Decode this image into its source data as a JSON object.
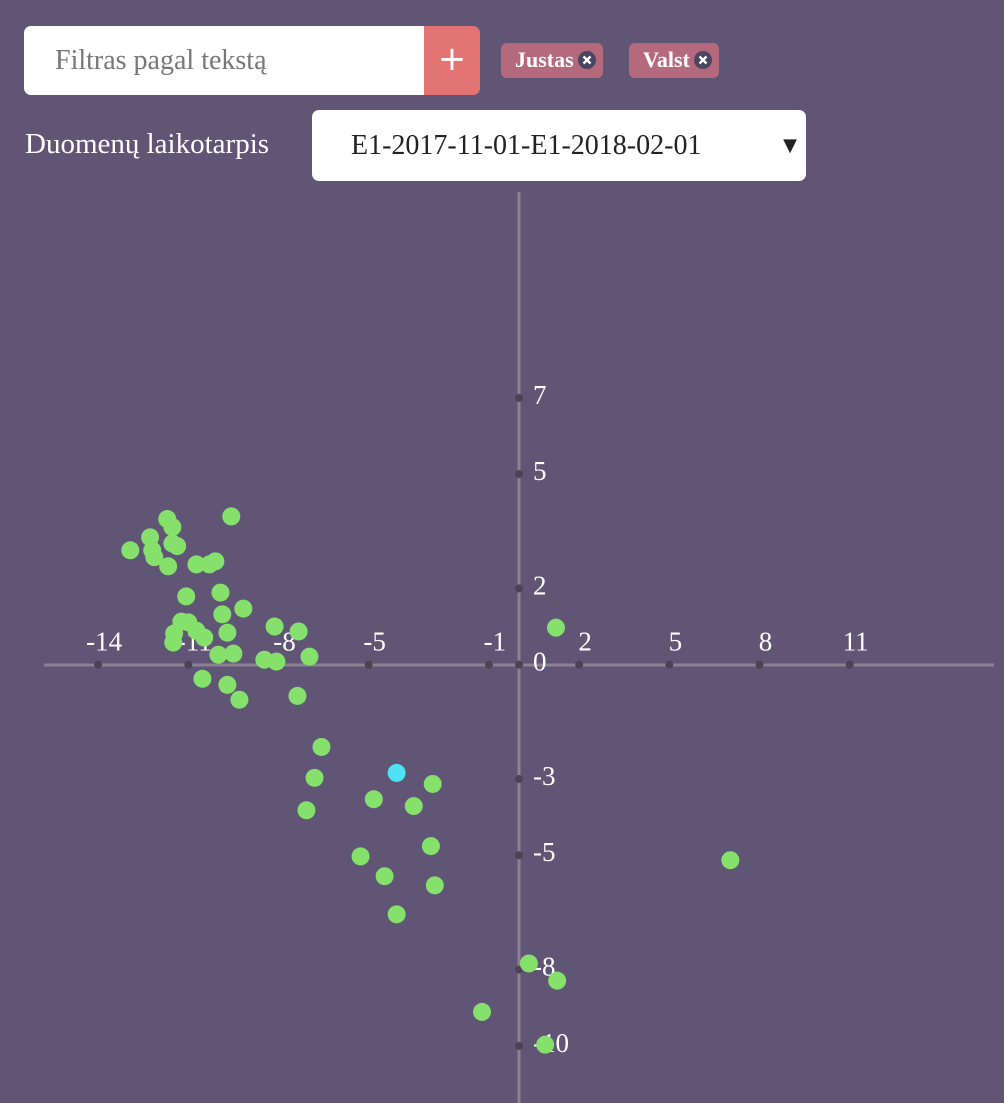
{
  "filter": {
    "placeholder": "Filtras pagal tekstą",
    "button": "+"
  },
  "tags": [
    "Justas",
    "Valst"
  ],
  "period": {
    "label": "Duomenų laikotarpis",
    "selected": "E1-2017-11-01-E1-2018-02-01"
  },
  "chart_data": {
    "type": "scatter",
    "xlim": [
      -15.8,
      15.8
    ],
    "ylim": [
      -11.5,
      12.4
    ],
    "xticks": [
      -14,
      -11,
      -8,
      -5,
      -1,
      2,
      5,
      8,
      11
    ],
    "yticks": [
      7,
      5,
      2,
      0,
      -3,
      -5,
      -8,
      -10
    ],
    "series": [
      {
        "color": "#86e06c",
        "x": [
          -9.57,
          -11.7,
          -11.53,
          -12.27,
          -12.93,
          -12.2,
          -11.53,
          -11.37,
          -12.13,
          -11.67,
          -10.73,
          -10.3,
          -10.1,
          -11.07,
          -9.93,
          -9.17,
          -9.87,
          -11.23,
          -11.0,
          -10.73,
          -10.47,
          -9.7,
          -11.47,
          -11.5,
          -8.13,
          -7.33,
          1.23,
          -10.0,
          -9.5,
          -6.97,
          -8.47,
          -8.07,
          -10.53,
          -9.7,
          -9.3,
          -7.37,
          -6.57,
          -6.8,
          -7.07,
          -4.83,
          -3.5,
          -2.87,
          -2.93,
          -5.27,
          -4.47,
          -2.8,
          7.03,
          -4.07,
          0.33,
          1.27,
          -1.23,
          0.87
        ],
        "values": [
          3.89,
          3.82,
          3.61,
          3.34,
          3.0,
          3.0,
          3.18,
          3.11,
          2.82,
          2.58,
          2.63,
          2.63,
          2.71,
          1.79,
          1.89,
          1.47,
          1.32,
          1.13,
          1.11,
          0.89,
          0.71,
          0.84,
          0.82,
          0.58,
          1.0,
          0.87,
          0.97,
          0.26,
          0.29,
          0.21,
          0.13,
          0.08,
          -0.37,
          -0.53,
          -0.92,
          -0.82,
          -2.16,
          -2.97,
          -3.82,
          -3.53,
          -3.71,
          -3.13,
          -4.76,
          -5.03,
          -5.55,
          -5.79,
          -5.13,
          -6.55,
          -7.84,
          -8.29,
          -9.11,
          -9.97
        ]
      },
      {
        "color": "#4de3f5",
        "x": [
          -4.07
        ],
        "values": [
          -2.84
        ]
      }
    ]
  }
}
